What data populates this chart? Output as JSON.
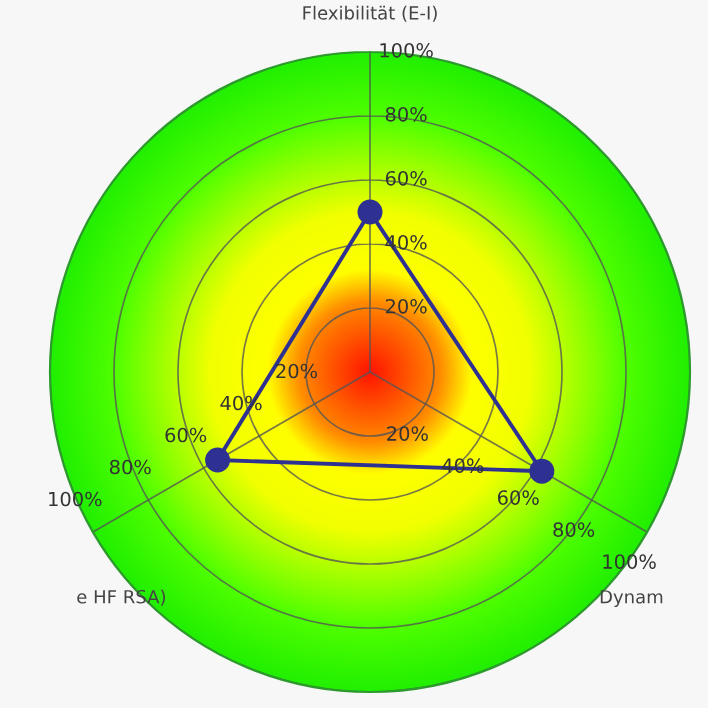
{
  "chart_data": {
    "type": "radar",
    "categories": [
      "Flexibilität (E-I)",
      "Dynam",
      "e HF RSA)"
    ],
    "series": [
      {
        "color": "#2e3192",
        "values": [
          50,
          62,
          55
        ]
      }
    ],
    "ylim": [
      0,
      100
    ],
    "yticks": [
      {
        "value": 20,
        "label": "20%"
      },
      {
        "value": 40,
        "label": "40%"
      },
      {
        "value": 60,
        "label": "60%"
      },
      {
        "value": 80,
        "label": "80%"
      },
      {
        "value": 100,
        "label": "100%"
      }
    ],
    "grid": true,
    "marker": "circle",
    "line_style": "solid"
  }
}
